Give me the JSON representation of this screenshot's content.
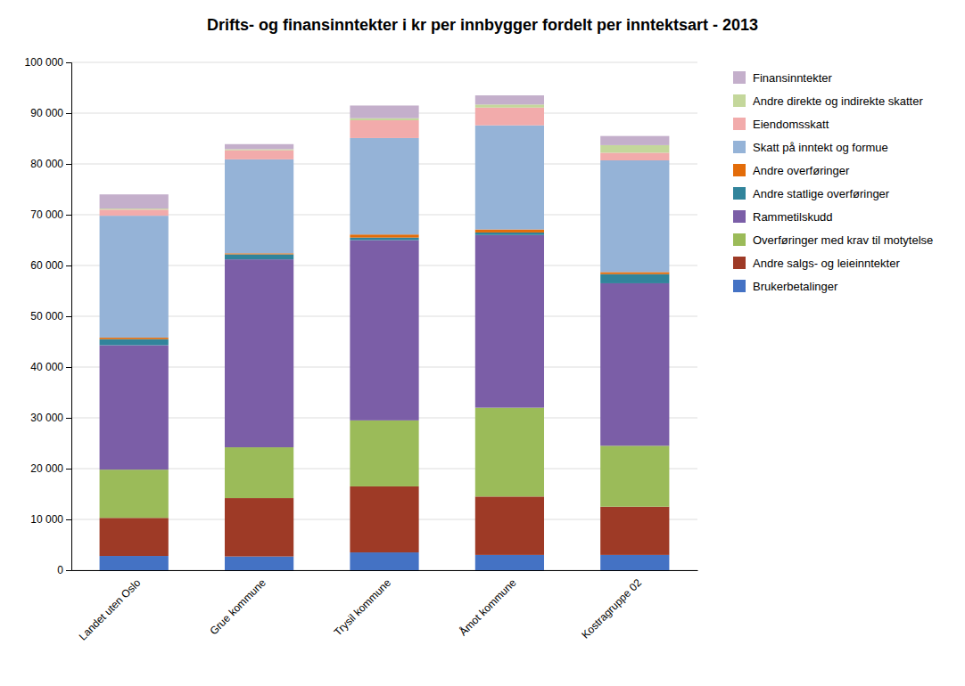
{
  "chart_data": {
    "type": "bar",
    "stacked": true,
    "title": "Drifts- og finansinntekter i kr per innbygger fordelt per inntektsart - 2013",
    "categories": [
      "Landet uten Oslo",
      "Grue kommune",
      "Trysil kommune",
      "Åmot kommune",
      "Kostragruppe 02"
    ],
    "series": [
      {
        "name": "Brukerbetalinger",
        "color": "#4472C4",
        "values": [
          2800,
          2700,
          3500,
          3000,
          3000
        ]
      },
      {
        "name": "Andre salgs- og leieinntekter",
        "color": "#9E3A26",
        "values": [
          7500,
          11500,
          13000,
          11500,
          9500
        ]
      },
      {
        "name": "Overføringer med krav til motytelse",
        "color": "#9BBB59",
        "values": [
          9500,
          10000,
          13000,
          17500,
          12000
        ]
      },
      {
        "name": "Rammetilskudd",
        "color": "#7B5EA7",
        "values": [
          24500,
          37000,
          35500,
          34000,
          32000
        ]
      },
      {
        "name": "Andre statlige overføringer",
        "color": "#31849B",
        "values": [
          1200,
          1000,
          500,
          500,
          1800
        ]
      },
      {
        "name": "Andre overføringer",
        "color": "#E36C09",
        "values": [
          300,
          200,
          600,
          600,
          400
        ]
      },
      {
        "name": "Skatt på inntekt og formue",
        "color": "#95B3D7",
        "values": [
          24000,
          18500,
          19000,
          20500,
          22000
        ]
      },
      {
        "name": "Eiendomsskatt",
        "color": "#F2ABAB",
        "values": [
          1200,
          1800,
          3500,
          3500,
          1500
        ]
      },
      {
        "name": "Andre direkte og indirekte skatter",
        "color": "#C4D79B",
        "values": [
          200,
          200,
          400,
          600,
          1500
        ]
      },
      {
        "name": "Finansinntekter",
        "color": "#C4AFCB",
        "values": [
          2800,
          1000,
          2500,
          1800,
          1800
        ]
      }
    ],
    "ylim": [
      0,
      100000
    ],
    "yticks": [
      0,
      {
        "value": 10000,
        "label": "10 000"
      },
      {
        "value": 20000,
        "label": "20 000"
      },
      {
        "value": 30000,
        "label": "30 000"
      },
      {
        "value": 40000,
        "label": "40 000"
      },
      {
        "value": 50000,
        "label": "50 000"
      },
      {
        "value": 60000,
        "label": "60 000"
      },
      {
        "value": 70000,
        "label": "70 000"
      },
      {
        "value": 80000,
        "label": "80 000"
      },
      {
        "value": 90000,
        "label": "90 000"
      },
      {
        "value": 100000,
        "label": "100 000"
      }
    ],
    "grid": true,
    "legend": "right"
  }
}
